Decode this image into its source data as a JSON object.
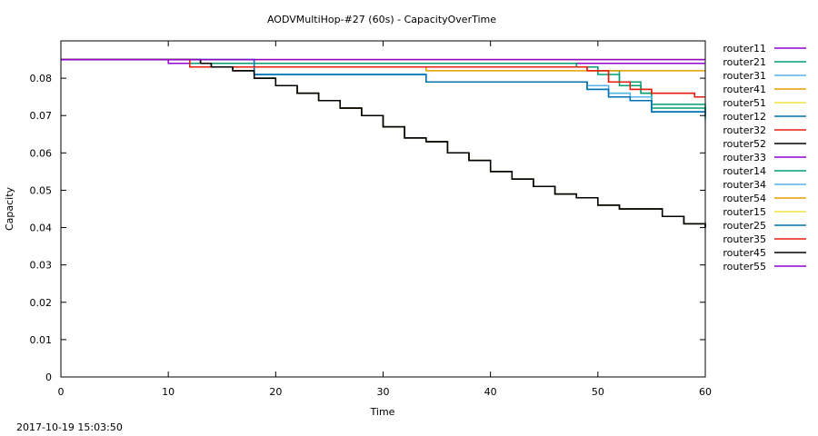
{
  "chart_data": {
    "type": "line",
    "title": "AODVMultiHop-#27 (60s) - CapacityOverTime",
    "xlabel": "Time",
    "ylabel": "Capacity",
    "xlim": [
      0,
      60
    ],
    "ylim": [
      0,
      0.09
    ],
    "xticks": [
      0,
      10,
      20,
      30,
      40,
      50,
      60
    ],
    "xtick_labels": [
      "0",
      "10",
      "20",
      "30",
      "40",
      "50",
      "60"
    ],
    "yticks": [
      0,
      0.01,
      0.02,
      0.03,
      0.04,
      0.05,
      0.06,
      0.07,
      0.08
    ],
    "ytick_labels": [
      "0",
      "0.01",
      "0.02",
      "0.03",
      "0.04",
      "0.05",
      "0.06",
      "0.07",
      "0.08"
    ],
    "grid": false,
    "legend_position": "outside-right",
    "series": [
      {
        "name": "router11",
        "color": "#9400d3",
        "x": [
          0,
          60
        ],
        "y": [
          0.085,
          0.085
        ]
      },
      {
        "name": "router21",
        "color": "#009e73",
        "x": [
          0,
          12,
          30,
          47,
          48,
          50,
          52,
          54,
          55,
          60
        ],
        "y": [
          0.085,
          0.084,
          0.084,
          0.084,
          0.083,
          0.081,
          0.078,
          0.076,
          0.073,
          0.069
        ]
      },
      {
        "name": "router31",
        "color": "#56b4e9",
        "x": [
          0,
          14,
          18,
          33,
          34,
          47,
          49,
          51,
          53,
          55,
          60
        ],
        "y": [
          0.085,
          0.085,
          0.081,
          0.081,
          0.079,
          0.079,
          0.078,
          0.076,
          0.075,
          0.071,
          0.07
        ]
      },
      {
        "name": "router41",
        "color": "#e69f00",
        "x": [
          0,
          11.5,
          13,
          14,
          16,
          18,
          20,
          22,
          24,
          26,
          28,
          30,
          32,
          34,
          36,
          38,
          40,
          42,
          44,
          46,
          48,
          50,
          52,
          54,
          56,
          58,
          60
        ],
        "y": [
          0.085,
          0.085,
          0.084,
          0.083,
          0.082,
          0.08,
          0.078,
          0.076,
          0.074,
          0.072,
          0.07,
          0.067,
          0.064,
          0.063,
          0.06,
          0.058,
          0.055,
          0.053,
          0.051,
          0.049,
          0.048,
          0.046,
          0.045,
          0.045,
          0.043,
          0.041,
          0.04
        ]
      },
      {
        "name": "router51",
        "color": "#f0e442",
        "x": [
          0,
          60
        ],
        "y": [
          0.085,
          0.085
        ]
      },
      {
        "name": "router12",
        "color": "#0072b2",
        "x": [
          0,
          14,
          18,
          33,
          34,
          47,
          49,
          51,
          53,
          55,
          60
        ],
        "y": [
          0.085,
          0.085,
          0.081,
          0.081,
          0.079,
          0.079,
          0.077,
          0.075,
          0.074,
          0.071,
          0.07
        ]
      },
      {
        "name": "router32",
        "color": "#e51e10",
        "x": [
          0,
          11.5,
          12,
          48,
          49,
          51,
          53,
          55,
          59,
          60
        ],
        "y": [
          0.085,
          0.085,
          0.083,
          0.083,
          0.082,
          0.079,
          0.077,
          0.076,
          0.075,
          0.075
        ]
      },
      {
        "name": "router52",
        "color": "#000000",
        "x": [
          0,
          11.5,
          13,
          14,
          16,
          18,
          20,
          22,
          24,
          26,
          28,
          30,
          32,
          34,
          36,
          38,
          40,
          42,
          44,
          46,
          48,
          50,
          52,
          54,
          56,
          58,
          60
        ],
        "y": [
          0.085,
          0.085,
          0.084,
          0.083,
          0.082,
          0.08,
          0.078,
          0.076,
          0.074,
          0.072,
          0.07,
          0.067,
          0.064,
          0.063,
          0.06,
          0.058,
          0.055,
          0.053,
          0.051,
          0.049,
          0.048,
          0.046,
          0.045,
          0.045,
          0.043,
          0.041,
          0.04
        ]
      },
      {
        "name": "router33",
        "color": "#9400d3",
        "x": [
          0,
          10,
          60
        ],
        "y": [
          0.085,
          0.084,
          0.084
        ]
      },
      {
        "name": "router14",
        "color": "#009e73",
        "x": [
          0,
          12,
          30,
          47,
          48,
          50,
          52,
          54,
          55,
          60
        ],
        "y": [
          0.085,
          0.084,
          0.084,
          0.084,
          0.083,
          0.082,
          0.079,
          0.076,
          0.072,
          0.07
        ]
      },
      {
        "name": "router34",
        "color": "#56b4e9",
        "x": [
          0,
          14,
          18,
          33,
          34,
          47,
          49,
          51,
          53,
          55,
          60
        ],
        "y": [
          0.085,
          0.085,
          0.081,
          0.081,
          0.079,
          0.079,
          0.078,
          0.076,
          0.075,
          0.071,
          0.07
        ]
      },
      {
        "name": "router54",
        "color": "#e69f00",
        "x": [
          0,
          11.5,
          12,
          33,
          34,
          60
        ],
        "y": [
          0.085,
          0.085,
          0.083,
          0.083,
          0.082,
          0.082
        ]
      },
      {
        "name": "router15",
        "color": "#f0e442",
        "x": [
          0,
          60
        ],
        "y": [
          0.085,
          0.085
        ]
      },
      {
        "name": "router25",
        "color": "#0072b2",
        "x": [
          0,
          14,
          18,
          33,
          34,
          47,
          49,
          51,
          53,
          55,
          60
        ],
        "y": [
          0.085,
          0.085,
          0.081,
          0.081,
          0.079,
          0.079,
          0.077,
          0.075,
          0.074,
          0.071,
          0.07
        ]
      },
      {
        "name": "router35",
        "color": "#e51e10",
        "x": [
          0,
          11.5,
          12,
          48,
          49,
          51,
          53,
          55,
          59,
          60
        ],
        "y": [
          0.085,
          0.085,
          0.083,
          0.083,
          0.082,
          0.079,
          0.077,
          0.076,
          0.075,
          0.075
        ]
      },
      {
        "name": "router45",
        "color": "#000000",
        "x": [
          0,
          11.5,
          13,
          14,
          16,
          18,
          20,
          22,
          24,
          26,
          28,
          30,
          32,
          34,
          36,
          38,
          40,
          42,
          44,
          46,
          48,
          50,
          52,
          54,
          56,
          58,
          60
        ],
        "y": [
          0.085,
          0.085,
          0.084,
          0.083,
          0.082,
          0.08,
          0.078,
          0.076,
          0.074,
          0.072,
          0.07,
          0.067,
          0.064,
          0.063,
          0.06,
          0.058,
          0.055,
          0.053,
          0.051,
          0.049,
          0.048,
          0.046,
          0.045,
          0.045,
          0.043,
          0.041,
          0.04
        ]
      },
      {
        "name": "router55",
        "color": "#9400d3",
        "x": [
          0,
          60
        ],
        "y": [
          0.085,
          0.085
        ]
      }
    ]
  },
  "footer": {
    "timestamp": "2017-10-19 15:03:50"
  }
}
